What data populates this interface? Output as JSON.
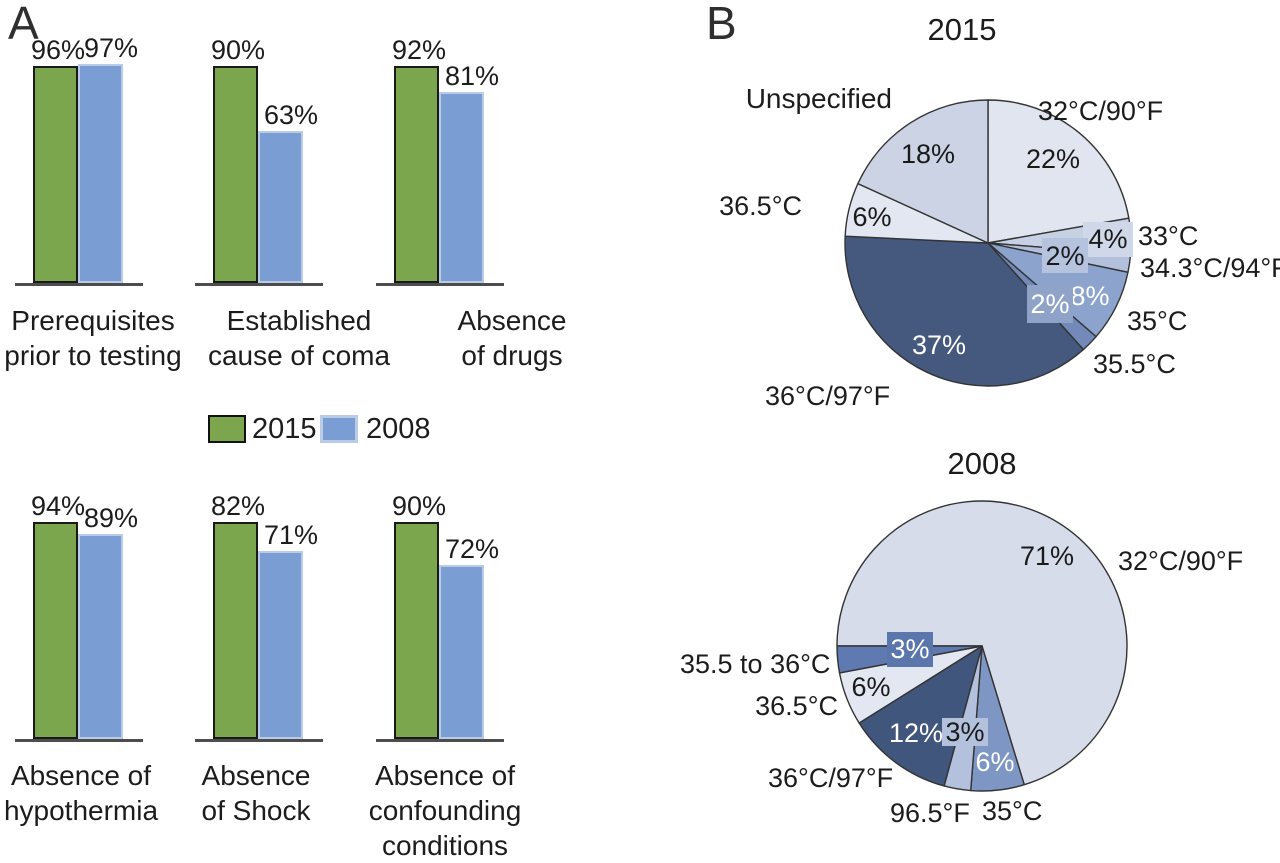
{
  "figure": {
    "panel_a_label": "A",
    "panel_b_label": "B"
  },
  "chart_data": [
    {
      "type": "bar",
      "unit": "%",
      "layout_hint": "six mini grouped-bar charts; within each, the 2015 bar is drawn at full height and the 2008 bar proportional to its ratio",
      "categories": [
        "Prerequisites prior to testing",
        "Established cause of coma",
        "Absence of drugs",
        "Absence of hypothermia",
        "Absence of Shock",
        "Absence of confounding conditions"
      ],
      "categories_lines": [
        [
          "Prerequisites",
          "prior to testing"
        ],
        [
          "Established",
          "cause of coma"
        ],
        [
          "Absence",
          "of drugs"
        ],
        [
          "Absence of",
          "hypothermia"
        ],
        [
          "Absence",
          "of Shock"
        ],
        [
          "Absence of",
          "confounding",
          "conditions"
        ]
      ],
      "series": [
        {
          "name": "2015",
          "color": "#7ca64e",
          "values": [
            96,
            90,
            92,
            94,
            82,
            90
          ]
        },
        {
          "name": "2008",
          "color": "#7a9ed4",
          "values": [
            97,
            63,
            81,
            89,
            71,
            72
          ]
        }
      ]
    },
    {
      "type": "pie",
      "title": "2015",
      "start_deg": 0,
      "unit": "%",
      "slices": [
        {
          "label": "32°C/90°F",
          "value": 22,
          "color": "#e0e5ef",
          "text": "dark"
        },
        {
          "label": "33°C",
          "value": 4,
          "color": "#c7d1e4",
          "text": "dark",
          "label_box": "#cfd8e9"
        },
        {
          "label": "34.3°C/94°F",
          "value": 2,
          "color": "#b2c0dc",
          "text": "dark",
          "label_box": "#b5c3de"
        },
        {
          "label": "35°C",
          "value": 8,
          "color": "#8ba3cd",
          "text": "white",
          "label_box": "#8ba3cd"
        },
        {
          "label": "35.5°C",
          "value": 2,
          "color": "#7289ba",
          "text": "white",
          "label_box": "#8fa3c9"
        },
        {
          "label": "36°C/97°F",
          "value": 37,
          "color": "#45597e",
          "text": "white"
        },
        {
          "label": "36.5°C",
          "value": 6,
          "color": "#e3e7f1",
          "text": "dark"
        },
        {
          "label": "Unspecified",
          "value": 18,
          "color": "#ccd3e5",
          "text": "dark"
        }
      ]
    },
    {
      "type": "pie",
      "title": "2008",
      "start_deg": -90,
      "unit": "%",
      "slices": [
        {
          "label": "32°C/90°F",
          "value": 71,
          "color": "#d6dcea",
          "text": "dark"
        },
        {
          "label": "35°C",
          "value": 6,
          "color": "#7e96c4",
          "text": "white"
        },
        {
          "label": "96.5°F",
          "value": 3,
          "color": "#b3c1dd",
          "text": "dark",
          "label_box": "#b3c1dd"
        },
        {
          "label": "36°C/97°F",
          "value": 12,
          "color": "#41567c",
          "text": "white"
        },
        {
          "label": "36.5°C",
          "value": 6,
          "color": "#e3e7f1",
          "text": "dark"
        },
        {
          "label": "35.5 to 36°C",
          "value": 3,
          "color": "#5f7ab0",
          "text": "white",
          "label_box": "#5b76ab"
        }
      ]
    }
  ]
}
